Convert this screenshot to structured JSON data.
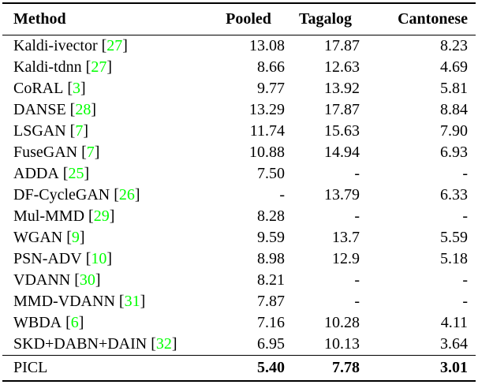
{
  "table": {
    "columns": [
      "Method",
      "Pooled",
      "Tagalog",
      "Cantonese"
    ],
    "symbols": {
      "bracket_open": "[",
      "bracket_close": "]"
    },
    "colors": {
      "citation_green": "#00FF00",
      "text": "#000000",
      "background": "#FFFFFF"
    },
    "rows": [
      {
        "method": "Kaldi-ivector",
        "cite": "27",
        "pooled": "13.08",
        "tagalog": "17.87",
        "cantonese": "8.23"
      },
      {
        "method": "Kaldi-tdnn",
        "cite": "27",
        "pooled": "8.66",
        "tagalog": "12.63",
        "cantonese": "4.69"
      },
      {
        "method": "CoRAL",
        "cite": "3",
        "pooled": "9.77",
        "tagalog": "13.92",
        "cantonese": "5.81"
      },
      {
        "method": "DANSE",
        "cite": "28",
        "pooled": "13.29",
        "tagalog": "17.87",
        "cantonese": "8.84"
      },
      {
        "method": "LSGAN",
        "cite": "7",
        "pooled": "11.74",
        "tagalog": "15.63",
        "cantonese": "7.90"
      },
      {
        "method": "FuseGAN",
        "cite": "7",
        "pooled": "10.88",
        "tagalog": "14.94",
        "cantonese": "6.93"
      },
      {
        "method": "ADDA",
        "cite": "25",
        "pooled": "7.50",
        "tagalog": "-",
        "cantonese": "-"
      },
      {
        "method": "DF-CycleGAN",
        "cite": "26",
        "pooled": "-",
        "tagalog": "13.79",
        "cantonese": "6.33"
      },
      {
        "method": "Mul-MMD",
        "cite": "29",
        "pooled": "8.28",
        "tagalog": "-",
        "cantonese": "-"
      },
      {
        "method": "WGAN",
        "cite": "9",
        "pooled": "9.59",
        "tagalog": "13.7",
        "cantonese": "5.59"
      },
      {
        "method": "PSN-ADV",
        "cite": "10",
        "pooled": "8.98",
        "tagalog": "12.9",
        "cantonese": "5.18"
      },
      {
        "method": "VDANN",
        "cite": "30",
        "pooled": "8.21",
        "tagalog": "-",
        "cantonese": "-"
      },
      {
        "method": "MMD-VDANN",
        "cite": "31",
        "pooled": "7.87",
        "tagalog": "-",
        "cantonese": "-"
      },
      {
        "method": "WBDA",
        "cite": "6",
        "pooled": "7.16",
        "tagalog": "10.28",
        "cantonese": "4.11"
      },
      {
        "method": "SKD+DABN+DAIN",
        "cite": "32",
        "pooled": "6.95",
        "tagalog": "10.13",
        "cantonese": "3.64"
      }
    ],
    "footer": {
      "method": "PICL",
      "pooled": "5.40",
      "tagalog": "7.78",
      "cantonese": "3.01"
    }
  }
}
